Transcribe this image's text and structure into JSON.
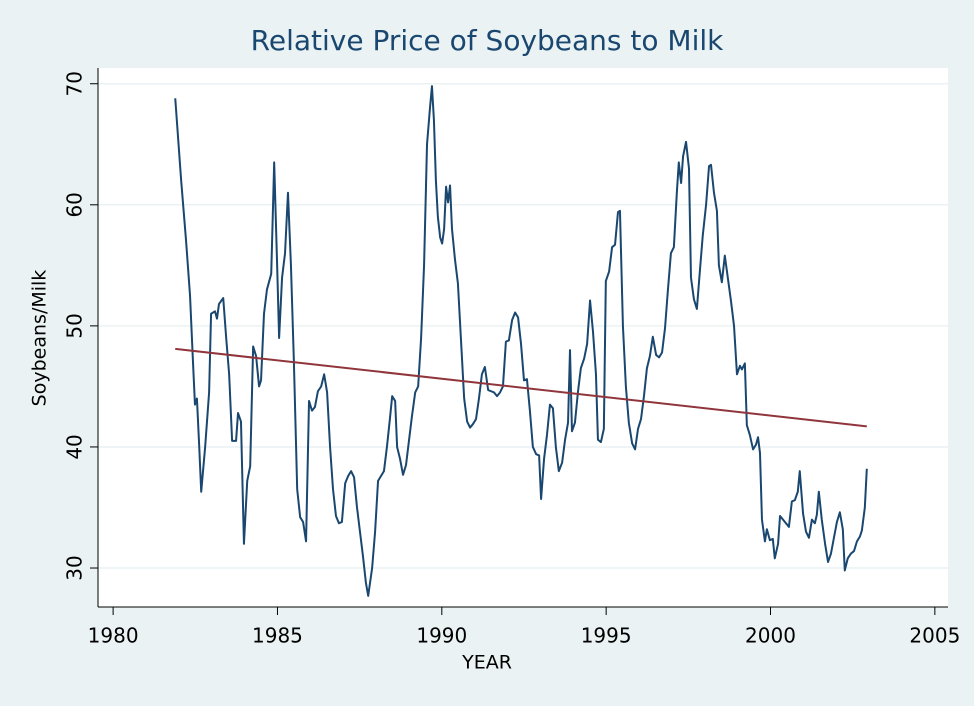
{
  "chart_data": {
    "type": "line",
    "title": "Relative Price of Soybeans to Milk",
    "x_label": "YEAR",
    "y_label": "Soybeans/Milk",
    "xlim": [
      1979.54,
      2005.4
    ],
    "xticks": [
      1980,
      1985,
      1990,
      1995,
      2000,
      2005
    ],
    "ylim": [
      26.78,
      71.3
    ],
    "yticks": [
      30,
      40,
      50,
      60,
      70
    ],
    "grid": true,
    "series": [
      {
        "color": "#1a476f",
        "x": [
          1981.89,
          1982.07,
          1982.22,
          1982.34,
          1982.43,
          1982.49,
          1982.55,
          1982.62,
          1982.68,
          1982.8,
          1982.92,
          1982.98,
          1983.1,
          1983.16,
          1983.22,
          1983.35,
          1983.44,
          1983.53,
          1983.62,
          1983.74,
          1983.8,
          1983.89,
          1983.98,
          1984.08,
          1984.17,
          1984.26,
          1984.35,
          1984.44,
          1984.5,
          1984.59,
          1984.68,
          1984.81,
          1984.9,
          1984.99,
          1985.05,
          1985.14,
          1985.23,
          1985.32,
          1985.41,
          1985.5,
          1985.6,
          1985.69,
          1985.78,
          1985.87,
          1985.96,
          1986.05,
          1986.14,
          1986.23,
          1986.33,
          1986.42,
          1986.51,
          1986.6,
          1986.69,
          1986.78,
          1986.87,
          1986.96,
          1987.06,
          1987.15,
          1987.24,
          1987.33,
          1987.42,
          1987.51,
          1987.6,
          1987.69,
          1987.76,
          1987.88,
          1987.97,
          1988.06,
          1988.15,
          1988.24,
          1988.33,
          1988.42,
          1988.49,
          1988.58,
          1988.64,
          1988.73,
          1988.82,
          1988.91,
          1989.0,
          1989.09,
          1989.19,
          1989.28,
          1989.37,
          1989.46,
          1989.55,
          1989.64,
          1989.7,
          1989.76,
          1989.82,
          1989.88,
          1989.95,
          1990.01,
          1990.07,
          1990.13,
          1990.19,
          1990.25,
          1990.31,
          1990.4,
          1990.49,
          1990.58,
          1990.68,
          1990.77,
          1990.86,
          1990.95,
          1991.04,
          1991.13,
          1991.22,
          1991.31,
          1991.41,
          1991.5,
          1991.59,
          1991.68,
          1991.77,
          1991.86,
          1991.95,
          1992.04,
          1992.14,
          1992.23,
          1992.32,
          1992.41,
          1992.5,
          1992.59,
          1992.68,
          1992.77,
          1992.87,
          1992.96,
          1993.02,
          1993.11,
          1993.2,
          1993.29,
          1993.38,
          1993.47,
          1993.56,
          1993.66,
          1993.75,
          1993.84,
          1993.9,
          1993.96,
          1994.05,
          1994.14,
          1994.23,
          1994.33,
          1994.42,
          1994.51,
          1994.6,
          1994.69,
          1994.75,
          1994.84,
          1994.93,
          1994.99,
          1995.09,
          1995.18,
          1995.27,
          1995.36,
          1995.42,
          1995.51,
          1995.6,
          1995.69,
          1995.79,
          1995.88,
          1995.97,
          1996.06,
          1996.15,
          1996.24,
          1996.33,
          1996.42,
          1996.52,
          1996.61,
          1996.7,
          1996.79,
          1996.88,
          1996.97,
          1997.06,
          1997.15,
          1997.21,
          1997.28,
          1997.34,
          1997.43,
          1997.52,
          1997.58,
          1997.67,
          1997.76,
          1997.85,
          1997.94,
          1998.04,
          1998.13,
          1998.19,
          1998.28,
          1998.37,
          1998.43,
          1998.52,
          1998.61,
          1998.7,
          1998.8,
          1998.89,
          1998.98,
          1999.07,
          1999.13,
          1999.22,
          1999.28,
          1999.37,
          1999.47,
          1999.56,
          1999.62,
          1999.68,
          1999.74,
          1999.83,
          1999.89,
          1999.98,
          2000.07,
          2000.13,
          2000.23,
          2000.29,
          2000.38,
          2000.47,
          2000.56,
          2000.65,
          2000.74,
          2000.83,
          2000.89,
          2000.99,
          2001.08,
          2001.17,
          2001.26,
          2001.35,
          2001.41,
          2001.47,
          2001.56,
          2001.66,
          2001.75,
          2001.84,
          2001.93,
          2002.02,
          2002.11,
          2002.2,
          2002.26,
          2002.35,
          2002.45,
          2002.54,
          2002.63,
          2002.72,
          2002.78,
          2002.87,
          2002.93
        ],
        "values": [
          68.8,
          62,
          57,
          52.5,
          47,
          43.5,
          44,
          40,
          36.3,
          40,
          44.5,
          51,
          51.2,
          50.6,
          51.8,
          52.3,
          49,
          46,
          40.5,
          40.5,
          42.8,
          42.1,
          32,
          37.2,
          38.4,
          48.3,
          47.5,
          45,
          45.5,
          51,
          53,
          54.3,
          63.5,
          55,
          49,
          54,
          56,
          61,
          55,
          47,
          36.5,
          34.2,
          33.8,
          32.2,
          43.8,
          43,
          43.3,
          44.6,
          45,
          46,
          44.5,
          40,
          36.5,
          34.3,
          33.7,
          33.8,
          37,
          37.6,
          38,
          37.5,
          35,
          33,
          31,
          28.8,
          27.7,
          30,
          33,
          37.2,
          37.6,
          38,
          40,
          42.3,
          44.2,
          43.8,
          40,
          39,
          37.7,
          38.5,
          40.5,
          42.5,
          44.5,
          45,
          49,
          55,
          65,
          68,
          69.8,
          67,
          62,
          59,
          57.3,
          56.8,
          58,
          61.5,
          60.2,
          61.6,
          58,
          55.5,
          53.5,
          49,
          44,
          42.1,
          41.6,
          41.9,
          42.3,
          44,
          46,
          46.6,
          44.7,
          44.6,
          44.5,
          44.2,
          44.5,
          45,
          48.7,
          48.8,
          50.5,
          51.1,
          50.7,
          48.5,
          45.5,
          45.6,
          43,
          40,
          39.4,
          39.3,
          35.7,
          39,
          41,
          43.5,
          43.2,
          40,
          38,
          38.7,
          40.6,
          42,
          48,
          41.3,
          42,
          44.5,
          46.5,
          47.3,
          48.5,
          52.1,
          49.5,
          46,
          40.6,
          40.4,
          41.5,
          53.7,
          54.5,
          56.5,
          56.7,
          59.4,
          59.5,
          50,
          45,
          42,
          40.3,
          39.8,
          41.5,
          42.3,
          44.2,
          46.5,
          47.5,
          49.1,
          47.6,
          47.4,
          47.8,
          49.8,
          53,
          56,
          56.5,
          61,
          63.5,
          61.8,
          64,
          65.2,
          63,
          54,
          52.2,
          51.4,
          54.5,
          57.5,
          60,
          63.2,
          63.3,
          61,
          59.5,
          55,
          53.6,
          55.8,
          54,
          52,
          50,
          46,
          46.7,
          46.4,
          46.9,
          41.8,
          41,
          39.8,
          40.2,
          40.8,
          39.5,
          34,
          32.2,
          33.2,
          32.3,
          32.4,
          30.8,
          32,
          34.3,
          34,
          33.7,
          33.4,
          35.5,
          35.6,
          36.3,
          38,
          34.5,
          33,
          32.5,
          34,
          33.7,
          34.4,
          36.3,
          34,
          32,
          30.5,
          31.2,
          32.5,
          33.8,
          34.6,
          33.2,
          29.8,
          30.8,
          31.2,
          31.4,
          32.2,
          32.6,
          33.1,
          35,
          38.2
        ]
      },
      {
        "color": "#90353b",
        "x": [
          1981.89,
          2002.93
        ],
        "values": [
          48.1,
          41.7
        ]
      }
    ]
  }
}
